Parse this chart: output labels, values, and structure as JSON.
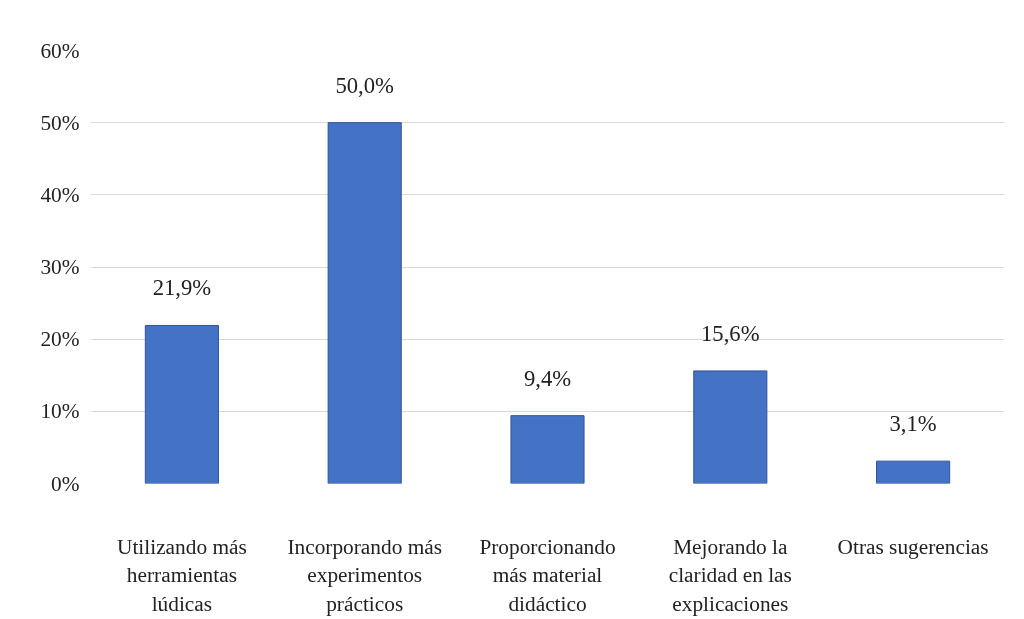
{
  "chart_data": {
    "type": "bar",
    "categories": [
      "Utilizando más herramientas lúdicas",
      "Incorporando más experimentos prácticos",
      "Proporcionando más material didáctico",
      "Mejorando la claridad en las explicaciones",
      "Otras sugerencias"
    ],
    "values": [
      21.9,
      50.0,
      9.4,
      15.6,
      3.1
    ],
    "value_labels": [
      "21,9%",
      "50,0%",
      "9,4%",
      "15,6%",
      "3,1%"
    ],
    "color": "#4472c4",
    "ylim": [
      0,
      60
    ],
    "yticks": [
      {
        "value": 0,
        "label": "0%"
      },
      {
        "value": 10,
        "label": "10%"
      },
      {
        "value": 20,
        "label": "20%"
      },
      {
        "value": 30,
        "label": "30%"
      },
      {
        "value": 40,
        "label": "40%"
      },
      {
        "value": 50,
        "label": "50%"
      },
      {
        "value": 60,
        "label": "60%"
      }
    ],
    "grid": "y"
  }
}
